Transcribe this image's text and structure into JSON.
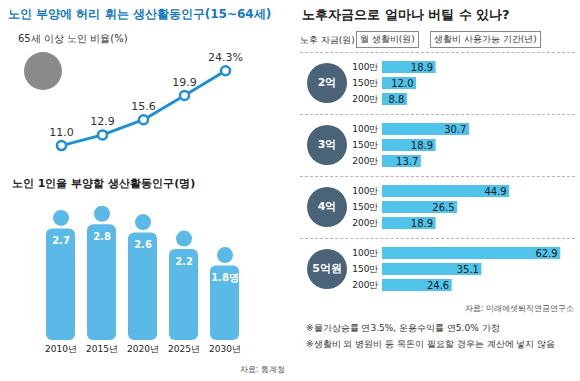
{
  "chart_data": [
    {
      "type": "line",
      "title": "노인 부양에 허리 휘는 생산활동인구(15~64세)",
      "subtitle": "65세 이상 노인 비율(%)",
      "categories": [
        null,
        null,
        null,
        null,
        null
      ],
      "values": [
        11.0,
        12.9,
        15.6,
        19.9,
        24.3
      ],
      "value_labels": [
        "11.0",
        "12.9",
        "15.6",
        "19.9",
        "24.3%"
      ],
      "color": "#1e8fd5",
      "marker": "circle",
      "ylim": [
        8,
        27
      ],
      "tick_labels": false,
      "data_labels": true
    },
    {
      "type": "bar",
      "title": "노인 1인을 부양할 생산활동인구(명)",
      "categories": [
        "2010년",
        "2015년",
        "2020년",
        "2025년",
        "2030년"
      ],
      "values": [
        2.7,
        2.8,
        2.6,
        2.2,
        1.8
      ],
      "value_labels": [
        "2.7",
        "2.8",
        "2.6",
        "2.2",
        "1.8명"
      ],
      "color": "#5bb9e8",
      "ylim": [
        0,
        3
      ],
      "tick_labels": "x",
      "data_labels": true,
      "source": "자료: 통계청"
    },
    {
      "type": "bar",
      "orientation": "horizontal",
      "title": "노후자금으로 얼마나 버틸 수 있나?",
      "group_label": "노후 자금(원)",
      "category_label": "월 생활비(원)",
      "value_label": "생활비 사용가능 기간(년)",
      "categories": [
        "100만",
        "150만",
        "200만"
      ],
      "series": [
        {
          "name": "2억",
          "color": "#4fc3ea",
          "values": [
            18.9,
            12.0,
            8.8
          ],
          "value_labels": [
            "18.9",
            "12.0",
            "8.8"
          ]
        },
        {
          "name": "3억",
          "color": "#4fc3ea",
          "values": [
            30.7,
            18.9,
            13.7
          ],
          "value_labels": [
            "30.7",
            "18.9",
            "13.7"
          ]
        },
        {
          "name": "4억",
          "color": "#4fc3ea",
          "values": [
            44.9,
            26.5,
            18.9
          ],
          "value_labels": [
            "44.9",
            "26.5",
            "18.9"
          ]
        },
        {
          "name": "5억원",
          "color": "#4fc3ea",
          "values": [
            62.9,
            35.1,
            24.6
          ],
          "value_labels": [
            "62.9",
            "35.1",
            "24.6"
          ]
        }
      ],
      "xlim": [
        0,
        66
      ],
      "tick_labels": "y",
      "data_labels": true,
      "source": "자료: 미래에셋퇴직연금연구소",
      "notes": [
        "※물가상승률 연3.5%, 운용수익률 연5.0% 가정",
        "※생활비 외 병원비 등 목돈이 필요할 경우는 계산에 넣지 않음"
      ]
    }
  ]
}
